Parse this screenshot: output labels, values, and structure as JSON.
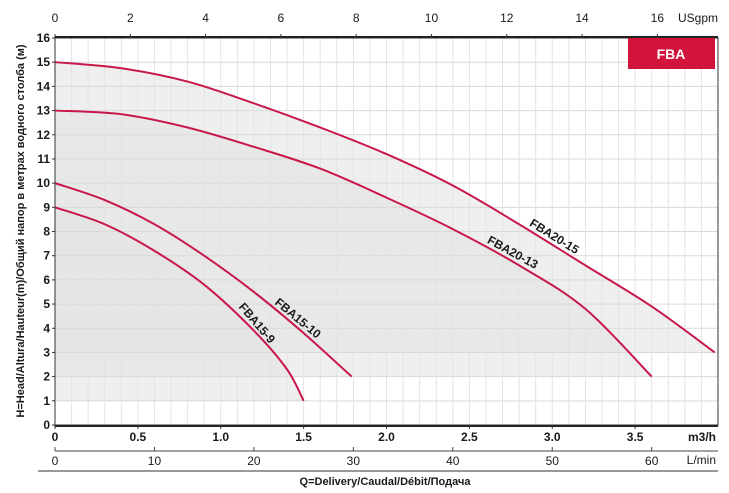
{
  "chart_data": {
    "type": "line",
    "badge": {
      "label": "FBA",
      "color": "#d2143c"
    },
    "curve_color": "#c8184a",
    "band_color": "#e2e2e2",
    "grid": true,
    "y_axis": {
      "label": "H=Head/Altura/Hauteur(m)/Общий напор в метрах водного столба (м)",
      "range": [
        0,
        16
      ],
      "ticks": [
        "0",
        "1",
        "2",
        "3",
        "4",
        "5",
        "6",
        "7",
        "8",
        "9",
        "10",
        "11",
        "12",
        "13",
        "14",
        "15",
        "16"
      ]
    },
    "x_axis_m3h": {
      "unit": "m3/h",
      "range": [
        0,
        4.0
      ],
      "ticks": [
        "0",
        "0.5",
        "1.0",
        "1.5",
        "2.0",
        "2.5",
        "3.0",
        "3.5"
      ]
    },
    "x_axis_lmin": {
      "unit": "L/min",
      "ticks": [
        "0",
        "10",
        "20",
        "30",
        "40",
        "50",
        "60"
      ]
    },
    "x_axis_usgpm": {
      "unit": "USgpm",
      "ticks": [
        "0",
        "2",
        "4",
        "6",
        "8",
        "10",
        "12",
        "14",
        "16"
      ]
    },
    "x_title": "Q=Delivery/Caudal/Débit/Подача",
    "series": [
      {
        "name": "FBA20-15",
        "x": [
          0,
          0.4,
          0.8,
          1.2,
          1.6,
          2.0,
          2.4,
          2.8,
          3.2,
          3.6,
          3.98
        ],
        "y": [
          15,
          14.75,
          14.2,
          13.3,
          12.3,
          11.2,
          9.9,
          8.3,
          6.6,
          4.9,
          3.0
        ]
      },
      {
        "name": "FBA20-13",
        "x": [
          0,
          0.4,
          0.8,
          1.2,
          1.6,
          2.0,
          2.4,
          2.8,
          3.2,
          3.6
        ],
        "y": [
          13,
          12.85,
          12.3,
          11.5,
          10.6,
          9.4,
          8.1,
          6.6,
          4.8,
          2.0
        ]
      },
      {
        "name": "FBA15-10",
        "x": [
          0,
          0.3,
          0.6,
          0.9,
          1.2,
          1.5,
          1.79
        ],
        "y": [
          10,
          9.3,
          8.3,
          7.0,
          5.5,
          3.8,
          2.0
        ]
      },
      {
        "name": "FBA15-9",
        "x": [
          0,
          0.3,
          0.6,
          0.9,
          1.2,
          1.4,
          1.5
        ],
        "y": [
          9,
          8.3,
          7.2,
          5.8,
          3.9,
          2.3,
          1.0
        ]
      }
    ],
    "bands": [
      {
        "x_start": 0,
        "x_end": 1.5,
        "y_floor": 1
      },
      {
        "x_start": 0,
        "x_end": 3.6,
        "y_floor": 2
      },
      {
        "x_start": 0,
        "x_end": 3.98,
        "y_floor": 3
      }
    ]
  }
}
